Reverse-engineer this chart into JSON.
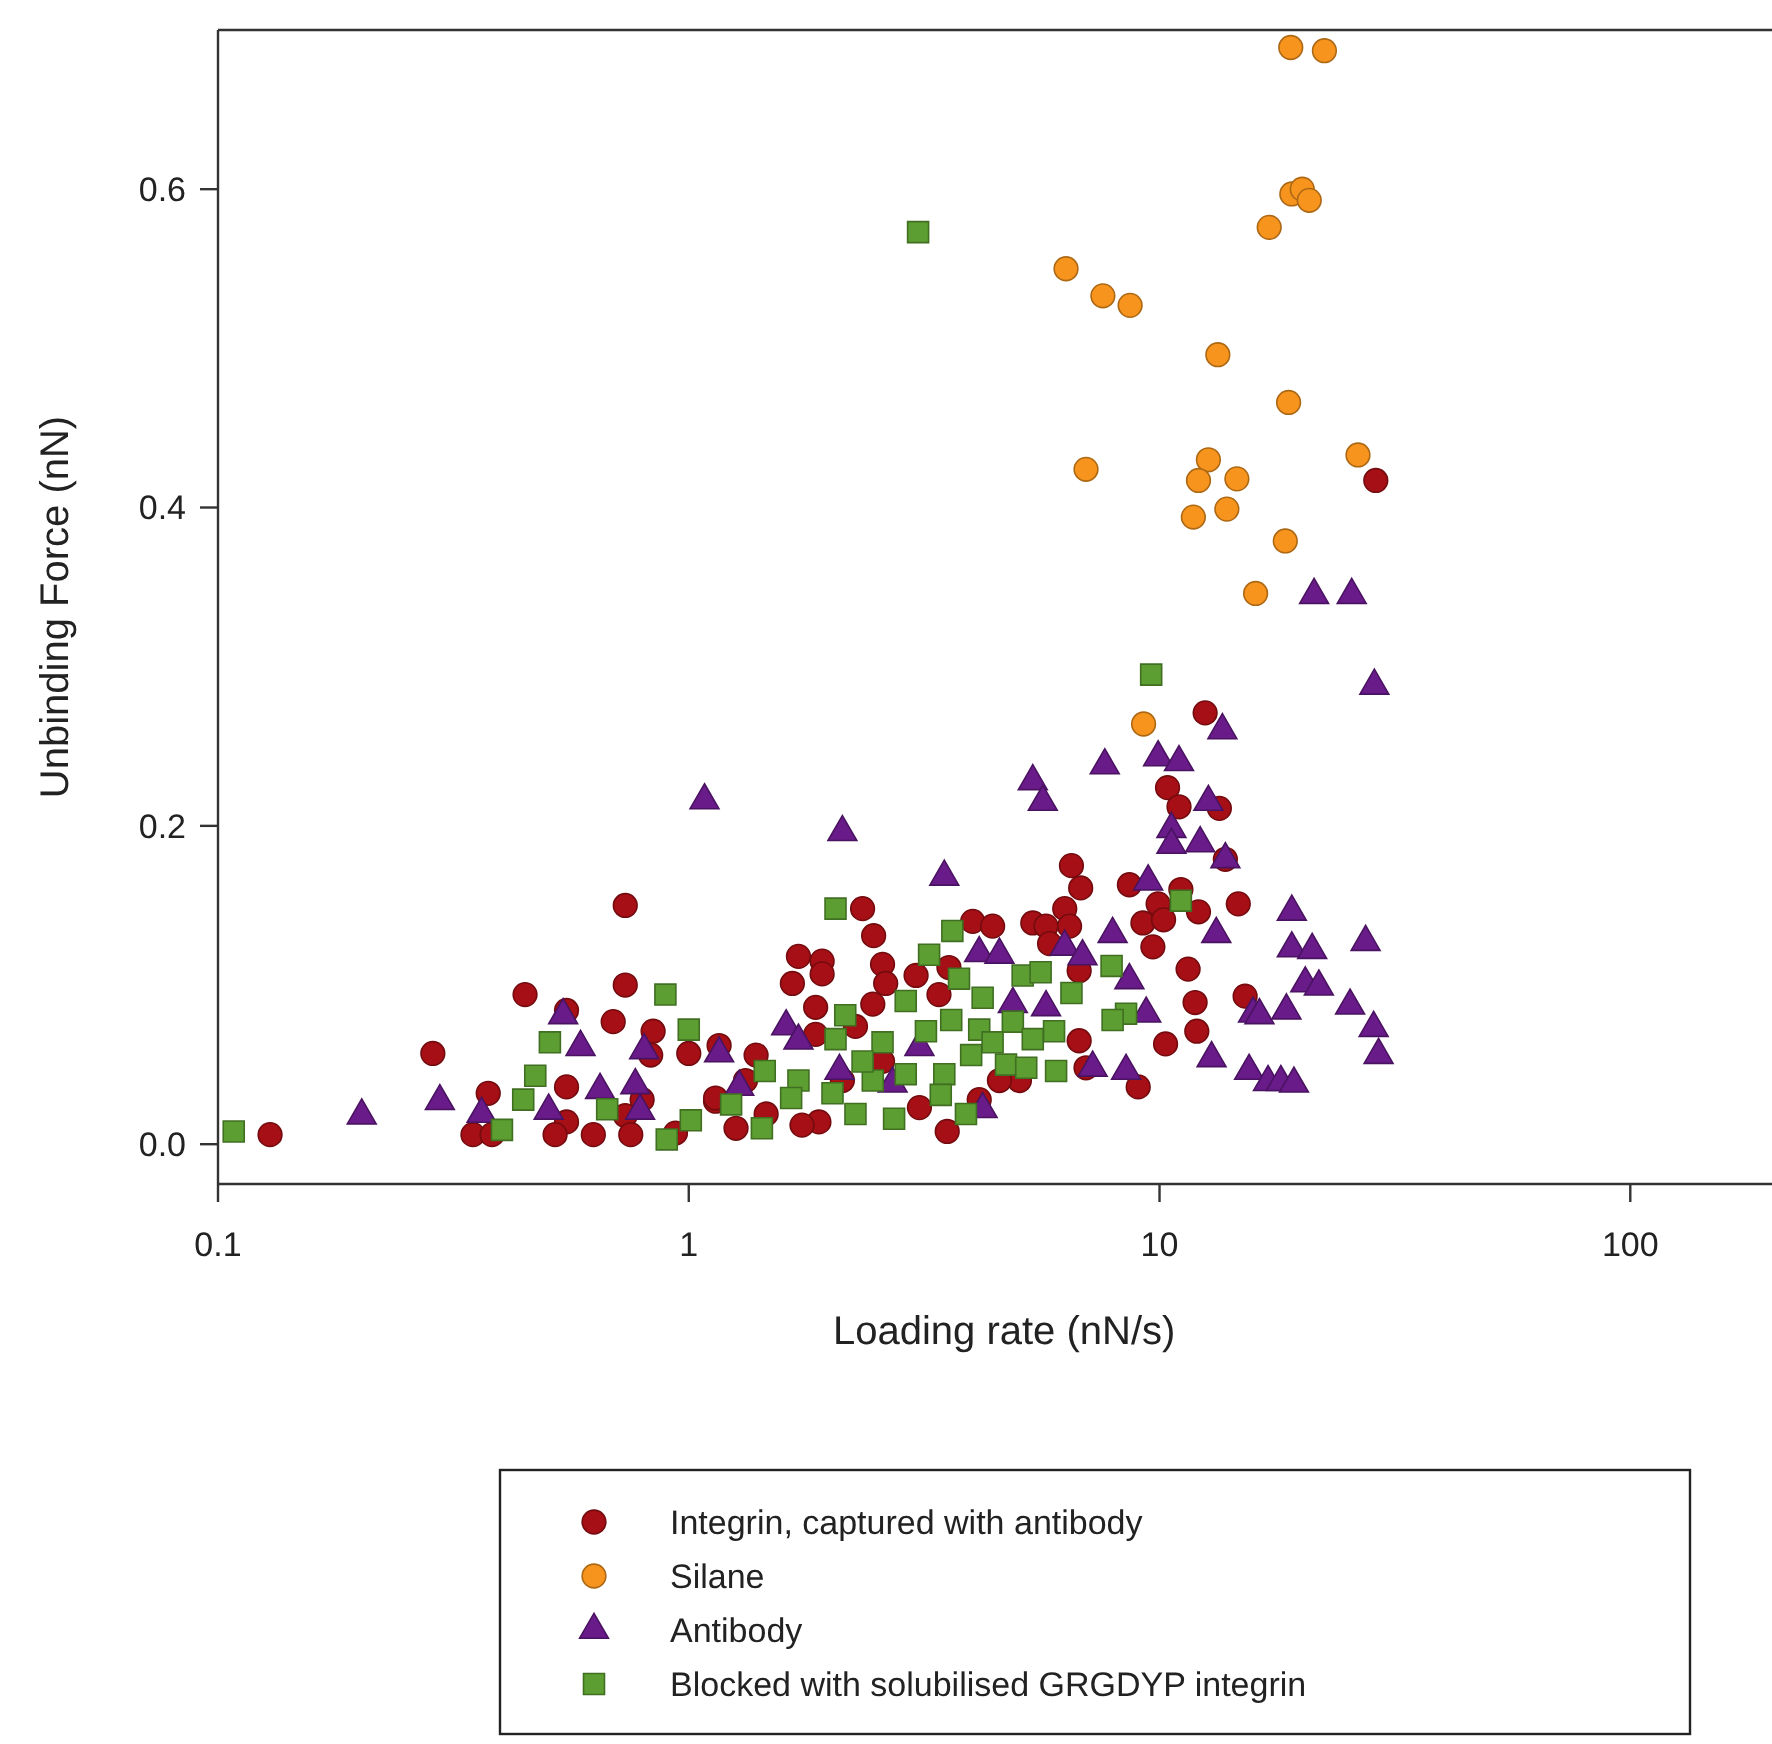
{
  "chart_data": {
    "type": "scatter",
    "xlabel": "Loading rate (nN/s)",
    "ylabel": "Unbinding Force (nN)",
    "log": "x",
    "xlim": [
      0.1,
      200
    ],
    "xticks": [
      0.1,
      1,
      10,
      100
    ],
    "ylim": [
      -0.025,
      0.7
    ],
    "yticks": [
      {
        "value": 0,
        "label": "0.0"
      },
      {
        "value": 0.2,
        "label": "0.2"
      },
      {
        "value": 0.4,
        "label": "0.4"
      },
      {
        "value": 0.6,
        "label": "0.6"
      }
    ],
    "grid": false,
    "legend": "bottom",
    "series": [
      {
        "name": "Integrin, captured with antibody",
        "color": "#a50f15",
        "marker": "circle",
        "x": [
          28.8,
          12.5,
          10.4,
          11.0,
          13.4,
          13.8,
          6.5,
          8.63,
          11.1,
          14.7,
          9.93,
          12.1,
          9.22,
          10.2,
          11.5,
          15.2,
          11.9,
          12.0,
          10.3,
          9.01,
          9.68,
          0.129,
          0.286,
          0.375,
          0.348,
          0.382,
          0.449,
          0.55,
          0.55,
          0.55,
          0.52,
          0.627,
          0.691,
          0.733,
          0.733,
          0.84,
          0.83,
          1.0,
          0.796,
          0.733,
          0.753,
          0.937,
          1.14,
          2.34,
          2.47,
          1.71,
          1.92,
          1.92,
          1.66,
          2.58,
          2.62,
          1.86,
          2.46,
          3.04,
          3.57,
          4.01,
          4.42,
          5.38,
          5.74,
          6.8,
          6.29,
          6.44,
          6.75,
          3.4,
          2.26,
          1.86,
          1.16,
          6.75,
          6.98,
          5.04,
          3.54,
          2.58,
          2.12,
          1.89,
          1.74,
          1.39,
          1.26,
          1.14,
          1.46,
          1.32,
          3.09,
          4.14,
          4.57,
          5.84
        ],
        "values": [
          0.417,
          0.271,
          0.224,
          0.212,
          0.211,
          0.179,
          0.175,
          0.163,
          0.16,
          0.151,
          0.151,
          0.146,
          0.139,
          0.141,
          0.11,
          0.093,
          0.089,
          0.071,
          0.063,
          0.036,
          0.124,
          0.006,
          0.057,
          0.032,
          0.006,
          0.006,
          0.094,
          0.084,
          0.036,
          0.014,
          0.006,
          0.006,
          0.077,
          0.15,
          0.1,
          0.071,
          0.056,
          0.057,
          0.028,
          0.018,
          0.006,
          0.007,
          0.027,
          0.148,
          0.131,
          0.118,
          0.115,
          0.107,
          0.101,
          0.113,
          0.101,
          0.086,
          0.088,
          0.106,
          0.111,
          0.14,
          0.137,
          0.139,
          0.137,
          0.161,
          0.148,
          0.137,
          0.109,
          0.094,
          0.074,
          0.069,
          0.062,
          0.065,
          0.048,
          0.04,
          0.008,
          0.052,
          0.04,
          0.014,
          0.012,
          0.056,
          0.01,
          0.029,
          0.019,
          0.04,
          0.023,
          0.028,
          0.04,
          0.126
        ]
      },
      {
        "name": "Silane",
        "color": "#f7941d",
        "marker": "circle",
        "x": [
          19.0,
          22.4,
          19.1,
          20.1,
          20.8,
          17.1,
          6.33,
          7.58,
          8.66,
          13.3,
          18.8,
          6.98,
          12.7,
          12.1,
          14.6,
          26.4,
          11.8,
          13.9,
          18.5,
          16.0,
          9.25
        ],
        "values": [
          0.689,
          0.687,
          0.597,
          0.6,
          0.593,
          0.576,
          0.55,
          0.533,
          0.527,
          0.496,
          0.466,
          0.424,
          0.43,
          0.417,
          0.418,
          0.433,
          0.394,
          0.399,
          0.379,
          0.346,
          0.264
        ]
      },
      {
        "name": "Antibody",
        "color": "#6a1b8a",
        "marker": "triangle",
        "x": [
          21.3,
          25.6,
          28.6,
          13.6,
          7.65,
          9.93,
          11.0,
          12.7,
          10.6,
          10.6,
          12.2,
          13.8,
          9.46,
          19.1,
          27.4,
          13.2,
          19.1,
          21.1,
          20.4,
          21.8,
          15.8,
          16.3,
          18.6,
          25.4,
          28.5,
          29.2,
          12.9,
          15.5,
          17.0,
          18.1,
          19.3,
          7.95,
          8.63,
          9.37,
          8.49,
          7.21,
          0.202,
          0.296,
          0.363,
          0.504,
          0.541,
          0.589,
          0.648,
          0.804,
          0.77,
          0.788,
          1.08,
          2.12,
          5.38,
          5.65,
          3.49,
          4.14,
          4.57,
          6.29,
          1.61,
          1.71,
          1.16,
          3.09,
          2.71,
          1.28,
          2.09,
          4.21,
          4.88,
          5.74,
          6.86
        ],
        "values": [
          0.345,
          0.345,
          0.288,
          0.26,
          0.238,
          0.243,
          0.24,
          0.215,
          0.198,
          0.188,
          0.189,
          0.179,
          0.165,
          0.146,
          0.127,
          0.132,
          0.123,
          0.122,
          0.101,
          0.099,
          0.082,
          0.081,
          0.084,
          0.087,
          0.073,
          0.056,
          0.054,
          0.046,
          0.039,
          0.039,
          0.038,
          0.132,
          0.103,
          0.082,
          0.046,
          0.048,
          0.018,
          0.027,
          0.019,
          0.021,
          0.081,
          0.061,
          0.034,
          0.059,
          0.037,
          0.021,
          0.216,
          0.196,
          0.228,
          0.215,
          0.168,
          0.12,
          0.119,
          0.124,
          0.074,
          0.065,
          0.057,
          0.061,
          0.038,
          0.036,
          0.046,
          0.022,
          0.088,
          0.086,
          0.118
        ]
      },
      {
        "name": "Blocked with solubilised GRGDYP integrin",
        "color": "#5c9e31",
        "marker": "square",
        "x": [
          3.07,
          9.6,
          11.1,
          7.91,
          6.5,
          8.49,
          7.95,
          0.108,
          0.401,
          0.445,
          0.472,
          0.507,
          0.671,
          0.892,
          1.0,
          0.898,
          1.01,
          2.05,
          3.24,
          3.63,
          5.12,
          5.59,
          4.21,
          3.75,
          2.89,
          2.15,
          2.05,
          2.58,
          3.19,
          3.61,
          4.14,
          4.88,
          5.38,
          5.97,
          4.42,
          3.98,
          4.72,
          5.21,
          6.03,
          3.49,
          3.43,
          3.88,
          2.73,
          2.89,
          2.46,
          2.34,
          2.26,
          2.02,
          1.71,
          1.65,
          1.45,
          1.43,
          1.23
        ],
        "values": [
          0.573,
          0.295,
          0.153,
          0.112,
          0.095,
          0.082,
          0.078,
          0.008,
          0.009,
          0.028,
          0.043,
          0.064,
          0.022,
          0.094,
          0.072,
          0.003,
          0.015,
          0.148,
          0.119,
          0.134,
          0.106,
          0.108,
          0.092,
          0.104,
          0.09,
          0.081,
          0.066,
          0.064,
          0.071,
          0.078,
          0.072,
          0.077,
          0.066,
          0.071,
          0.064,
          0.056,
          0.05,
          0.048,
          0.046,
          0.044,
          0.031,
          0.019,
          0.016,
          0.044,
          0.04,
          0.052,
          0.019,
          0.032,
          0.04,
          0.029,
          0.046,
          0.01,
          0.025
        ]
      }
    ]
  }
}
